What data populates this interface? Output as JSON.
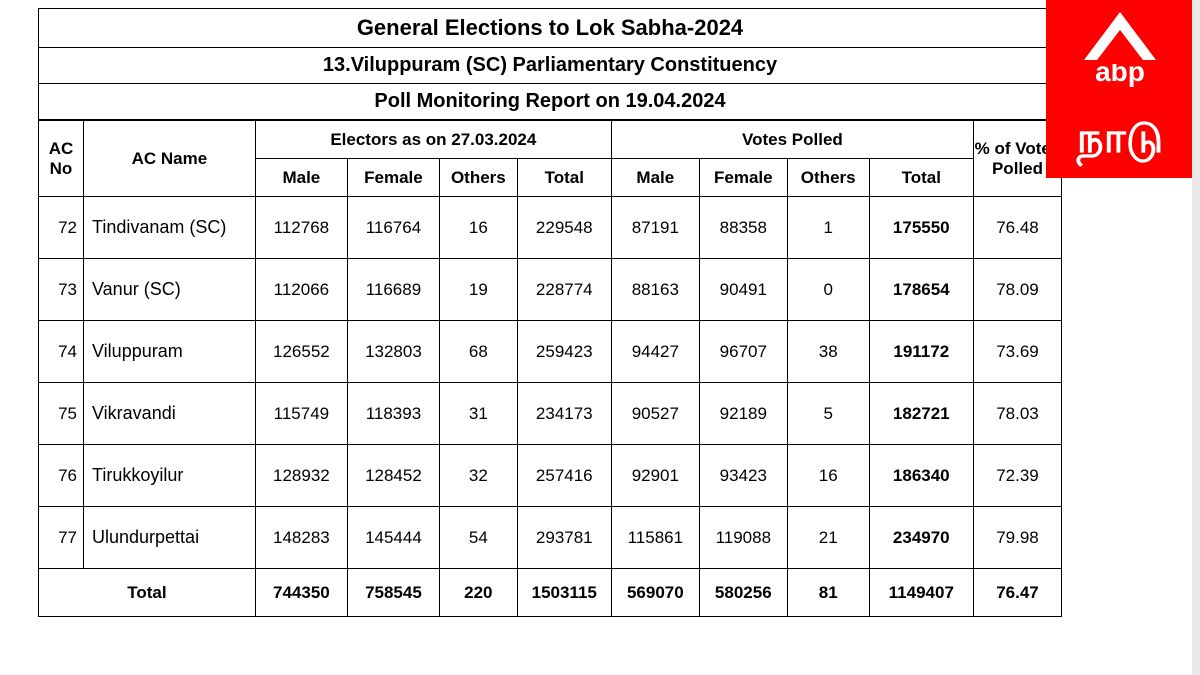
{
  "titles": {
    "main": "General Elections to Lok Sabha-2024",
    "constituency": "13.Viluppuram (SC) Parliamentary Constituency",
    "report": "Poll Monitoring Report on 19.04.2024"
  },
  "headers": {
    "acno": "AC No",
    "acname": "AC Name",
    "electors_group": "Electors as on 27.03.2024",
    "polled_group": "Votes Polled",
    "percent": "% of Votes Polled",
    "male": "Male",
    "female": "Female",
    "others": "Others",
    "total": "Total"
  },
  "rows": [
    {
      "no": "72",
      "name": "Tindivanam (SC)",
      "em": "112768",
      "ef": "116764",
      "eo": "16",
      "et": "229548",
      "pm": "87191",
      "pf": "88358",
      "po": "1",
      "pt": "175550",
      "pct": "76.48"
    },
    {
      "no": "73",
      "name": "Vanur (SC)",
      "em": "112066",
      "ef": "116689",
      "eo": "19",
      "et": "228774",
      "pm": "88163",
      "pf": "90491",
      "po": "0",
      "pt": "178654",
      "pct": "78.09"
    },
    {
      "no": "74",
      "name": "Viluppuram",
      "em": "126552",
      "ef": "132803",
      "eo": "68",
      "et": "259423",
      "pm": "94427",
      "pf": "96707",
      "po": "38",
      "pt": "191172",
      "pct": "73.69"
    },
    {
      "no": "75",
      "name": "Vikravandi",
      "em": "115749",
      "ef": "118393",
      "eo": "31",
      "et": "234173",
      "pm": "90527",
      "pf": "92189",
      "po": "5",
      "pt": "182721",
      "pct": "78.03"
    },
    {
      "no": "76",
      "name": "Tirukkoyilur",
      "em": "128932",
      "ef": "128452",
      "eo": "32",
      "et": "257416",
      "pm": "92901",
      "pf": "93423",
      "po": "16",
      "pt": "186340",
      "pct": "72.39"
    },
    {
      "no": "77",
      "name": "Ulundurpettai",
      "em": "148283",
      "ef": "145444",
      "eo": "54",
      "et": "293781",
      "pm": "115861",
      "pf": "119088",
      "po": "21",
      "pt": "234970",
      "pct": "79.98"
    }
  ],
  "total": {
    "label": "Total",
    "em": "744350",
    "ef": "758545",
    "eo": "220",
    "et": "1503115",
    "pm": "569070",
    "pf": "580256",
    "po": "81",
    "pt": "1149407",
    "pct": "76.47"
  },
  "logo": {
    "brand": "abp",
    "tamil": "நாடு",
    "bg": "#ff0000",
    "fg": "#ffffff"
  }
}
